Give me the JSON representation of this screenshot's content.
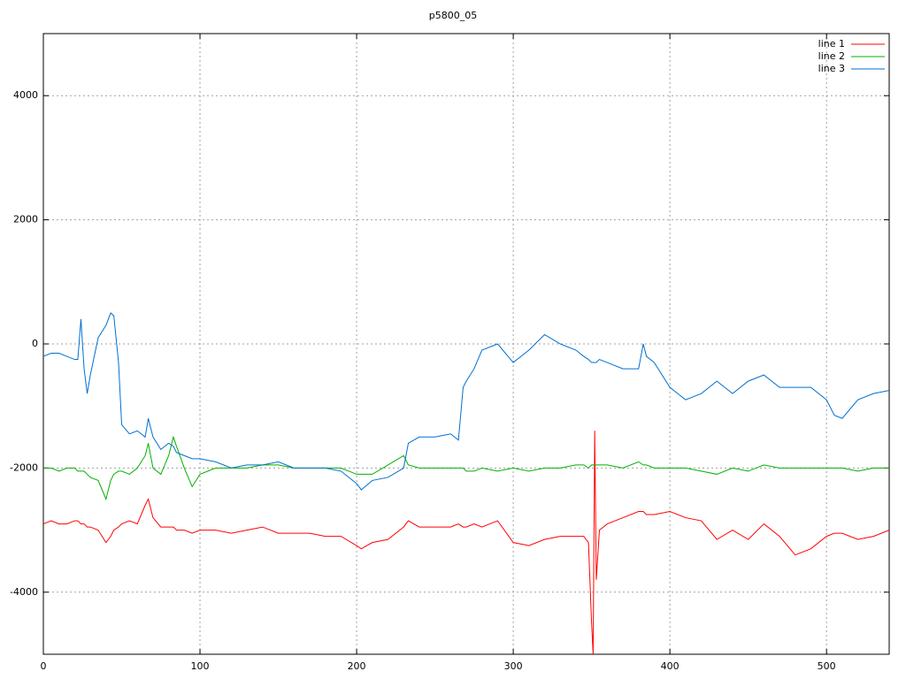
{
  "chart_data": {
    "type": "line",
    "title": "p5800_05",
    "xlim": [
      0,
      540
    ],
    "ylim": [
      -5000,
      5000
    ],
    "xticks": [
      0,
      100,
      200,
      300,
      400,
      500
    ],
    "yticks": [
      -4000,
      -2000,
      0,
      2000,
      4000
    ],
    "grid": true,
    "legend": "top-right",
    "x": [
      0,
      5,
      10,
      15,
      20,
      22,
      24,
      26,
      28,
      30,
      35,
      40,
      43,
      45,
      48,
      50,
      55,
      60,
      65,
      67,
      70,
      75,
      80,
      83,
      85,
      90,
      95,
      100,
      110,
      120,
      130,
      140,
      150,
      160,
      170,
      180,
      190,
      200,
      203,
      210,
      220,
      230,
      233,
      240,
      250,
      260,
      265,
      268,
      270,
      275,
      280,
      290,
      300,
      310,
      320,
      330,
      340,
      345,
      348,
      350,
      351,
      352,
      353,
      355,
      360,
      370,
      380,
      383,
      385,
      390,
      400,
      410,
      420,
      430,
      440,
      450,
      460,
      470,
      480,
      490,
      500,
      505,
      510,
      520,
      530,
      540
    ],
    "series": [
      {
        "name": "line 1",
        "color": "#ff0000",
        "values": [
          -2900,
          -2850,
          -2900,
          -2900,
          -2850,
          -2850,
          -2900,
          -2900,
          -2950,
          -2950,
          -3000,
          -3200,
          -3100,
          -3000,
          -2950,
          -2900,
          -2850,
          -2900,
          -2600,
          -2500,
          -2800,
          -2950,
          -2950,
          -2950,
          -3000,
          -3000,
          -3050,
          -3000,
          -3000,
          -3050,
          -3000,
          -2950,
          -3050,
          -3050,
          -3050,
          -3100,
          -3100,
          -3250,
          -3300,
          -3200,
          -3150,
          -2950,
          -2850,
          -2950,
          -2950,
          -2950,
          -2900,
          -2950,
          -2950,
          -2900,
          -2950,
          -2850,
          -3200,
          -3250,
          -3150,
          -3100,
          -3100,
          -3100,
          -3200,
          -4500,
          -5000,
          -1400,
          -3800,
          -3000,
          -2900,
          -2800,
          -2700,
          -2700,
          -2750,
          -2750,
          -2700,
          -2800,
          -2850,
          -3150,
          -3000,
          -3150,
          -2900,
          -3100,
          -3400,
          -3300,
          -3100,
          -3050,
          -3050,
          -3150,
          -3100,
          -3000
        ]
      },
      {
        "name": "line 2",
        "color": "#00b000",
        "values": [
          -2000,
          -2000,
          -2050,
          -2000,
          -2000,
          -2050,
          -2050,
          -2050,
          -2100,
          -2150,
          -2200,
          -2500,
          -2200,
          -2100,
          -2050,
          -2050,
          -2100,
          -2000,
          -1800,
          -1600,
          -2000,
          -2100,
          -1800,
          -1500,
          -1650,
          -2000,
          -2300,
          -2100,
          -2000,
          -2000,
          -2000,
          -1950,
          -1950,
          -2000,
          -2000,
          -2000,
          -2000,
          -2100,
          -2100,
          -2100,
          -1950,
          -1800,
          -1950,
          -2000,
          -2000,
          -2000,
          -2000,
          -2000,
          -2050,
          -2050,
          -2000,
          -2050,
          -2000,
          -2050,
          -2000,
          -2000,
          -1950,
          -1950,
          -2000,
          -1950,
          -1950,
          -1950,
          -1950,
          -1950,
          -1950,
          -2000,
          -1900,
          -1950,
          -1950,
          -2000,
          -2000,
          -2000,
          -2050,
          -2100,
          -2000,
          -2050,
          -1950,
          -2000,
          -2000,
          -2000,
          -2000,
          -2000,
          -2000,
          -2050,
          -2000,
          -2000
        ]
      },
      {
        "name": "line 3",
        "color": "#0070d0",
        "values": [
          -200,
          -150,
          -150,
          -200,
          -250,
          -250,
          400,
          -400,
          -800,
          -500,
          100,
          300,
          500,
          450,
          -300,
          -1300,
          -1450,
          -1400,
          -1500,
          -1200,
          -1500,
          -1700,
          -1600,
          -1650,
          -1750,
          -1800,
          -1850,
          -1850,
          -1900,
          -2000,
          -1950,
          -1950,
          -1900,
          -2000,
          -2000,
          -2000,
          -2050,
          -2250,
          -2350,
          -2200,
          -2150,
          -2000,
          -1600,
          -1500,
          -1500,
          -1450,
          -1550,
          -700,
          -600,
          -400,
          -100,
          0,
          -300,
          -100,
          150,
          0,
          -100,
          -200,
          -250,
          -300,
          -300,
          -300,
          -300,
          -250,
          -300,
          -400,
          -400,
          0,
          -200,
          -300,
          -700,
          -900,
          -800,
          -600,
          -800,
          -600,
          -500,
          -700,
          -700,
          -700,
          -900,
          -1150,
          -1200,
          -900,
          -800,
          -750
        ]
      }
    ]
  }
}
